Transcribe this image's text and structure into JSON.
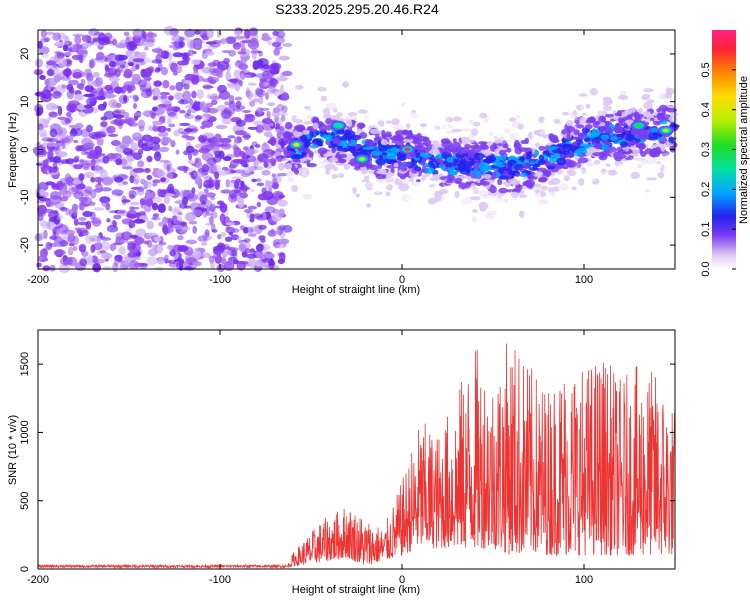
{
  "title": "S233.2025.295.20.46.R24",
  "chart_data": [
    {
      "type": "heatmap",
      "xlabel": "Height of straight line (km)",
      "ylabel": "Frequency (Hz)",
      "xlim": [
        -200,
        150
      ],
      "ylim": [
        -25,
        25
      ],
      "xticks": [
        -200,
        -100,
        0,
        100
      ],
      "yticks": [
        -20,
        -10,
        0,
        10,
        20
      ],
      "colorbar": {
        "label": "Normalized spectral amplitude",
        "range": [
          0,
          0.6
        ],
        "ticks": [
          "0.0",
          "0.1",
          "0.2",
          "0.3",
          "0.4",
          "0.5"
        ]
      },
      "regions": [
        {
          "x": [
            -200,
            -63
          ],
          "description": "broadband noise"
        },
        {
          "x": [
            -63,
            150
          ],
          "description": "signal band"
        }
      ],
      "ridge": {
        "x": [
          -63,
          -50,
          -40,
          -25,
          -10,
          0,
          20,
          40,
          60,
          80,
          100,
          120,
          150
        ],
        "freq_hz": [
          0,
          1,
          3,
          1,
          -1,
          -1,
          -3,
          -3,
          -4,
          -2,
          2,
          3,
          4
        ]
      },
      "peak_amplitude_points": [
        {
          "x": -58,
          "freq_hz": 1,
          "amplitude": 0.45
        },
        {
          "x": -22,
          "freq_hz": -2,
          "amplitude": 0.42
        },
        {
          "x": 3,
          "freq_hz": 0,
          "amplitude": 0.6
        },
        {
          "x": -35,
          "freq_hz": 5,
          "amplitude": 0.3
        },
        {
          "x": 130,
          "freq_hz": 5,
          "amplitude": 0.35
        },
        {
          "x": 145,
          "freq_hz": 4,
          "amplitude": 0.4
        }
      ]
    },
    {
      "type": "line",
      "xlabel": "Height of straight line (km)",
      "ylabel": "SNR (10 * v/v)",
      "xlim": [
        -200,
        150
      ],
      "ylim": [
        0,
        1750
      ],
      "xticks": [
        -200,
        -100,
        0,
        100
      ],
      "yticks": [
        0,
        500,
        1000,
        1500
      ],
      "series_color": "#ee3333",
      "envelope": {
        "x": [
          -200,
          -63,
          -60,
          -45,
          -30,
          -20,
          -10,
          0,
          10,
          20,
          30,
          40,
          50,
          60,
          70,
          80,
          90,
          100,
          110,
          120,
          130,
          140,
          150
        ],
        "max": [
          30,
          30,
          120,
          350,
          480,
          380,
          300,
          650,
          1100,
          1000,
          1300,
          1650,
          1450,
          1750,
          1500,
          1350,
          1550,
          1500,
          1600,
          1400,
          1500,
          1450,
          1200
        ],
        "min": [
          10,
          10,
          20,
          50,
          80,
          20,
          60,
          100,
          150,
          150,
          150,
          150,
          150,
          100,
          120,
          100,
          100,
          100,
          100,
          100,
          100,
          100,
          100
        ]
      }
    }
  ]
}
